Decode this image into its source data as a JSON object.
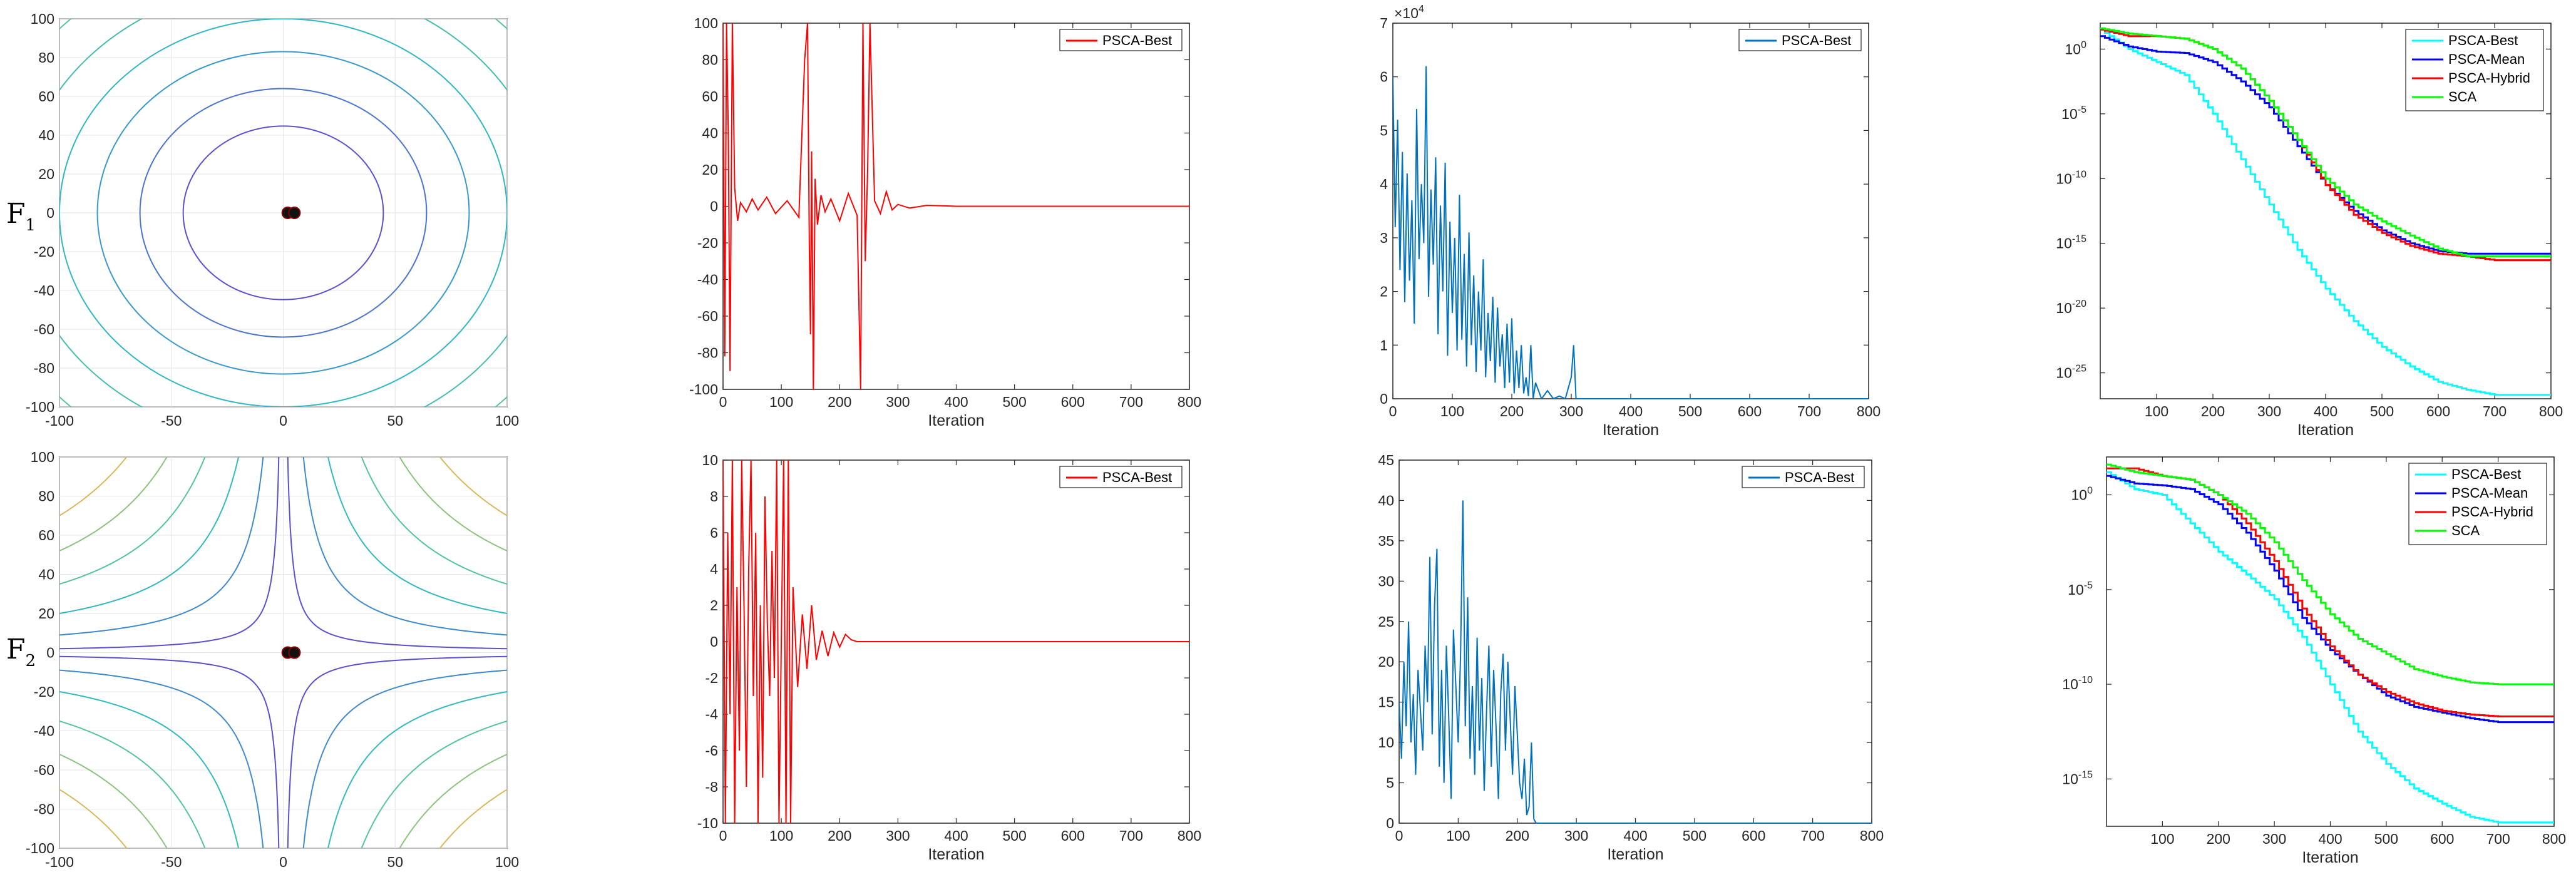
{
  "figure": {
    "row_labels": [
      {
        "letter": "F",
        "sub": "1"
      },
      {
        "letter": "F",
        "sub": "2"
      }
    ]
  },
  "colors": {
    "psca_best_trajectory": "#ff0000",
    "fitness_history": "#0072bd",
    "conv_psca_best": "#00ffff",
    "conv_psca_mean": "#0000ff",
    "conv_psca_hybrid": "#ff0000",
    "conv_sca": "#00ff00",
    "contour_inner": "#5a4fcf",
    "contour_mid": "#29b5c9",
    "contour_outer": "#d9b85c"
  },
  "chart_data": [
    {
      "id": "F1-contour",
      "type": "contour",
      "title": "",
      "function": "x^2 + y^2",
      "xlim": [
        -100,
        100
      ],
      "ylim": [
        -100,
        100
      ],
      "xticks": [
        -100,
        -50,
        0,
        50,
        100
      ],
      "yticks": [
        -100,
        -80,
        -60,
        -40,
        -20,
        0,
        20,
        40,
        60,
        80,
        100
      ],
      "xlabel": "",
      "ylabel": "",
      "levels": [
        2000,
        4100,
        6900,
        10000,
        14000,
        19000,
        25000,
        32000,
        40000
      ],
      "markers": [
        {
          "x": 2,
          "y": 0
        },
        {
          "x": 5,
          "y": 0
        }
      ],
      "grid": true
    },
    {
      "id": "F1-trajectory",
      "type": "line",
      "title": "",
      "xlabel": "Iteration",
      "ylabel": "",
      "xlim": [
        0,
        800
      ],
      "ylim": [
        -100,
        100
      ],
      "xticks": [
        0,
        100,
        200,
        300,
        400,
        500,
        600,
        700,
        800
      ],
      "yticks": [
        -100,
        -80,
        -60,
        -40,
        -20,
        0,
        20,
        40,
        60,
        80,
        100
      ],
      "legend": "top-right",
      "series": [
        {
          "name": "PSCA-Best",
          "color": "#ff0000",
          "x": [
            0,
            3,
            6,
            9,
            12,
            16,
            20,
            25,
            30,
            40,
            50,
            60,
            75,
            90,
            110,
            130,
            140,
            145,
            148,
            150,
            152,
            155,
            158,
            162,
            168,
            175,
            185,
            200,
            215,
            230,
            236,
            240,
            244,
            248,
            252,
            260,
            270,
            280,
            290,
            300,
            320,
            350,
            400,
            800
          ],
          "y": [
            100,
            -82,
            100,
            40,
            -90,
            100,
            10,
            -8,
            2,
            -3,
            4,
            -2,
            5,
            -4,
            3,
            -6,
            80,
            100,
            -20,
            -70,
            30,
            -100,
            15,
            -10,
            6,
            -3,
            4,
            -8,
            7,
            -5,
            -100,
            100,
            -30,
            20,
            100,
            3,
            -4,
            8,
            -2,
            1,
            -1,
            0.5,
            0,
            0
          ]
        }
      ]
    },
    {
      "id": "F1-fitness",
      "type": "line",
      "title": "",
      "xlabel": "Iteration",
      "ylabel": "",
      "y_multiplier_label": "×10⁴",
      "xlim": [
        0,
        800
      ],
      "ylim": [
        0,
        7
      ],
      "xticks": [
        0,
        100,
        200,
        300,
        400,
        500,
        600,
        700,
        800
      ],
      "yticks": [
        0,
        1,
        2,
        3,
        4,
        5,
        6,
        7
      ],
      "legend": "top-right",
      "series": [
        {
          "name": "PSCA-Best",
          "color": "#0072bd",
          "x": [
            0,
            4,
            8,
            12,
            16,
            20,
            24,
            28,
            32,
            36,
            40,
            44,
            48,
            52,
            56,
            60,
            64,
            68,
            72,
            76,
            80,
            84,
            88,
            92,
            96,
            100,
            104,
            108,
            112,
            116,
            120,
            124,
            128,
            132,
            136,
            140,
            144,
            148,
            152,
            156,
            160,
            164,
            168,
            172,
            176,
            180,
            184,
            188,
            192,
            196,
            200,
            204,
            208,
            212,
            216,
            220,
            224,
            228,
            232,
            236,
            240,
            250,
            260,
            270,
            280,
            290,
            300,
            304,
            308,
            312,
            316,
            320,
            800
          ],
          "y": [
            6,
            3.2,
            5.2,
            2.4,
            4.6,
            1.8,
            4.2,
            2.2,
            3.7,
            1.4,
            5.4,
            2.6,
            4.0,
            2.9,
            6.2,
            1.9,
            3.9,
            2.5,
            4.5,
            1.2,
            3.6,
            2.0,
            4.4,
            0.8,
            3.3,
            1.6,
            3.0,
            0.9,
            3.8,
            1.1,
            2.7,
            0.6,
            3.1,
            1.0,
            2.3,
            0.5,
            2.0,
            0.9,
            2.6,
            0.4,
            1.6,
            0.7,
            1.9,
            0.3,
            1.7,
            0.6,
            1.2,
            0.2,
            1.4,
            0.3,
            1.5,
            0.1,
            0.9,
            0.2,
            1.0,
            0.1,
            0.4,
            0.05,
            1.0,
            0.0,
            0.3,
            0.0,
            0.15,
            0.0,
            0.05,
            0.0,
            0.4,
            1.0,
            0.0,
            0.0,
            0.0,
            0.0,
            0.0
          ]
        }
      ]
    },
    {
      "id": "F1-convergence",
      "type": "line",
      "title": "",
      "xlabel": "Iteration",
      "ylabel": "",
      "yscale": "log",
      "xlim": [
        0,
        800
      ],
      "ylim_log10": [
        -27,
        2
      ],
      "xticks": [
        100,
        200,
        300,
        400,
        500,
        600,
        700,
        800
      ],
      "yticks_label": [
        "10^0",
        "10^-5",
        "10^-10",
        "10^-15",
        "10^-20",
        "10^-25"
      ],
      "yticks_exp": [
        0,
        -5,
        -10,
        -15,
        -20,
        -25
      ],
      "legend": "top-right",
      "series": [
        {
          "name": "PSCA-Best",
          "color": "#00ffff",
          "x": [
            0,
            50,
            100,
            150,
            200,
            250,
            300,
            350,
            400,
            450,
            500,
            550,
            600,
            650,
            700,
            800
          ],
          "log10_y": [
            1.5,
            0.0,
            -1.0,
            -2.0,
            -5.0,
            -8.5,
            -12,
            -15.5,
            -18.5,
            -21,
            -23,
            -24.5,
            -25.7,
            -26.3,
            -26.7,
            -26.7
          ]
        },
        {
          "name": "PSCA-Mean",
          "color": "#0000ff",
          "x": [
            0,
            50,
            100,
            150,
            200,
            250,
            300,
            350,
            400,
            450,
            500,
            550,
            600,
            650,
            700,
            800
          ],
          "log10_y": [
            1.0,
            0.2,
            -0.2,
            -0.3,
            -1.0,
            -2.5,
            -4.5,
            -7.5,
            -10.5,
            -12.5,
            -14.0,
            -15.0,
            -15.6,
            -15.8,
            -15.8,
            -15.8
          ]
        },
        {
          "name": "PSCA-Hybrid",
          "color": "#ff0000",
          "x": [
            0,
            50,
            100,
            150,
            200,
            250,
            300,
            350,
            400,
            450,
            500,
            550,
            600,
            650,
            700,
            800
          ],
          "log10_y": [
            1.5,
            1.0,
            1.0,
            0.8,
            0.0,
            -1.5,
            -4.0,
            -7.0,
            -10.5,
            -12.8,
            -14.2,
            -15.2,
            -15.8,
            -16.0,
            -16.3,
            -16.3
          ]
        },
        {
          "name": "SCA",
          "color": "#00ff00",
          "x": [
            0,
            50,
            100,
            150,
            200,
            250,
            300,
            350,
            400,
            450,
            500,
            550,
            600,
            650,
            700,
            800
          ],
          "log10_y": [
            1.6,
            1.2,
            1.0,
            0.8,
            0.0,
            -1.5,
            -4.0,
            -7.0,
            -10.0,
            -12.0,
            -13.3,
            -14.4,
            -15.4,
            -16.0,
            -16.0,
            -16.0
          ]
        }
      ]
    },
    {
      "id": "F2-contour",
      "type": "contour",
      "title": "",
      "function": "x*y (hyperbolic)",
      "xlim": [
        -100,
        100
      ],
      "ylim": [
        -100,
        100
      ],
      "xticks": [
        -100,
        -50,
        0,
        50,
        100
      ],
      "yticks": [
        -100,
        -80,
        -60,
        -40,
        -20,
        0,
        20,
        40,
        60,
        80,
        100
      ],
      "xlabel": "",
      "ylabel": "",
      "levels": [
        200,
        900,
        2000,
        3500,
        5200,
        7000
      ],
      "markers": [
        {
          "x": 2,
          "y": 0
        },
        {
          "x": 5,
          "y": 0
        }
      ],
      "grid": true
    },
    {
      "id": "F2-trajectory",
      "type": "line",
      "title": "",
      "xlabel": "Iteration",
      "ylabel": "",
      "xlim": [
        0,
        800
      ],
      "ylim": [
        -10,
        10
      ],
      "xticks": [
        0,
        100,
        200,
        300,
        400,
        500,
        600,
        700,
        800
      ],
      "yticks": [
        -10,
        -8,
        -6,
        -4,
        -2,
        0,
        2,
        4,
        6,
        8,
        10
      ],
      "legend": "top-right",
      "series": [
        {
          "name": "PSCA-Best",
          "color": "#ff0000",
          "x": [
            0,
            4,
            8,
            12,
            16,
            20,
            24,
            28,
            32,
            36,
            40,
            44,
            48,
            52,
            56,
            60,
            64,
            68,
            72,
            76,
            80,
            84,
            88,
            92,
            96,
            100,
            104,
            108,
            112,
            116,
            120,
            128,
            136,
            144,
            152,
            160,
            170,
            180,
            190,
            200,
            210,
            220,
            230,
            800
          ],
          "y": [
            10,
            -10,
            6,
            -4,
            10,
            -10,
            3,
            -6,
            10,
            2,
            -8,
            4,
            10,
            -3,
            6,
            -10,
            2,
            -7.5,
            8,
            1,
            -3,
            5,
            -2,
            10,
            -10,
            0,
            10,
            -10,
            10,
            -10,
            3,
            -2.5,
            1.5,
            -1.5,
            2,
            -1,
            0.6,
            -0.8,
            0.5,
            -0.3,
            0.4,
            0.1,
            0,
            0
          ]
        }
      ]
    },
    {
      "id": "F2-fitness",
      "type": "line",
      "title": "",
      "xlabel": "Iteration",
      "ylabel": "",
      "xlim": [
        0,
        800
      ],
      "ylim": [
        0,
        45
      ],
      "xticks": [
        0,
        100,
        200,
        300,
        400,
        500,
        600,
        700,
        800
      ],
      "yticks": [
        0,
        5,
        10,
        15,
        20,
        25,
        30,
        35,
        40,
        45
      ],
      "legend": "top-right",
      "series": [
        {
          "name": "PSCA-Best",
          "color": "#0072bd",
          "x": [
            0,
            4,
            8,
            12,
            16,
            20,
            24,
            28,
            32,
            36,
            40,
            44,
            48,
            52,
            56,
            60,
            64,
            68,
            72,
            76,
            80,
            84,
            88,
            92,
            96,
            100,
            104,
            108,
            112,
            116,
            120,
            124,
            128,
            132,
            136,
            140,
            144,
            148,
            152,
            156,
            160,
            164,
            168,
            172,
            176,
            180,
            184,
            188,
            192,
            196,
            200,
            204,
            208,
            212,
            216,
            220,
            224,
            228,
            232,
            800
          ],
          "y": [
            15,
            8,
            20,
            12,
            25,
            10,
            16,
            6,
            19,
            14,
            9,
            22,
            15,
            33,
            11,
            27,
            34,
            7,
            19,
            5,
            22,
            13,
            3,
            24,
            17,
            10,
            21,
            40,
            12,
            28,
            8,
            17,
            6,
            23,
            9,
            18,
            4,
            14,
            22,
            7,
            19,
            12,
            3,
            16,
            21,
            9,
            20,
            13,
            6,
            17,
            11,
            5,
            3,
            8,
            1,
            2,
            10,
            0.5,
            0,
            0
          ]
        }
      ]
    },
    {
      "id": "F2-convergence",
      "type": "line",
      "title": "",
      "xlabel": "Iteration",
      "ylabel": "",
      "yscale": "log",
      "xlim": [
        0,
        800
      ],
      "ylim_log10": [
        -17.5,
        2
      ],
      "xticks": [
        100,
        200,
        300,
        400,
        500,
        600,
        700,
        800
      ],
      "yticks_label": [
        "10^0",
        "10^-5",
        "10^-10",
        "10^-15"
      ],
      "yticks_exp": [
        0,
        -5,
        -10,
        -15
      ],
      "legend": "top-right",
      "series": [
        {
          "name": "PSCA-Best",
          "color": "#00ffff",
          "x": [
            0,
            50,
            100,
            150,
            200,
            250,
            300,
            350,
            400,
            450,
            500,
            550,
            600,
            650,
            700,
            800
          ],
          "log10_y": [
            1.2,
            0.3,
            0.0,
            -1.5,
            -3.0,
            -4.2,
            -5.5,
            -7.5,
            -10.0,
            -12.5,
            -14.2,
            -15.5,
            -16.3,
            -17.0,
            -17.3,
            -17.3
          ]
        },
        {
          "name": "PSCA-Mean",
          "color": "#0000ff",
          "x": [
            0,
            50,
            100,
            150,
            200,
            250,
            300,
            350,
            400,
            450,
            500,
            550,
            600,
            650,
            700,
            800
          ],
          "log10_y": [
            1.0,
            0.6,
            0.5,
            0.3,
            -0.5,
            -2.0,
            -4.0,
            -6.5,
            -8.2,
            -9.5,
            -10.6,
            -11.2,
            -11.5,
            -11.8,
            -12.0,
            -12.0
          ]
        },
        {
          "name": "PSCA-Hybrid",
          "color": "#ff0000",
          "x": [
            0,
            50,
            100,
            150,
            200,
            250,
            300,
            350,
            400,
            450,
            500,
            550,
            600,
            650,
            700,
            800
          ],
          "log10_y": [
            1.4,
            1.4,
            1.0,
            0.8,
            0.0,
            -1.5,
            -3.5,
            -6.0,
            -8.0,
            -9.5,
            -10.4,
            -11.0,
            -11.4,
            -11.6,
            -11.7,
            -11.7
          ]
        },
        {
          "name": "SCA",
          "color": "#00ff00",
          "x": [
            0,
            50,
            100,
            150,
            200,
            250,
            300,
            350,
            400,
            450,
            500,
            550,
            600,
            650,
            700,
            800
          ],
          "log10_y": [
            1.6,
            1.2,
            1.0,
            0.8,
            0.0,
            -1.0,
            -2.5,
            -4.5,
            -6.3,
            -7.6,
            -8.4,
            -9.2,
            -9.6,
            -9.9,
            -10.0,
            -10.0
          ]
        }
      ]
    }
  ]
}
